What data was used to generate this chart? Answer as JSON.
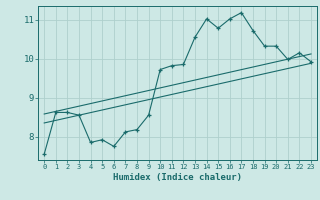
{
  "xlabel": "Humidex (Indice chaleur)",
  "bg_color": "#cde8e5",
  "grid_color": "#aed0cc",
  "line_color": "#1a6b6b",
  "xlim": [
    -0.5,
    23.5
  ],
  "ylim": [
    7.4,
    11.35
  ],
  "xticks": [
    0,
    1,
    2,
    3,
    4,
    5,
    6,
    7,
    8,
    9,
    10,
    11,
    12,
    13,
    14,
    15,
    16,
    17,
    18,
    19,
    20,
    21,
    22,
    23
  ],
  "yticks": [
    8,
    9,
    10,
    11
  ],
  "data_x": [
    0,
    1,
    2,
    3,
    4,
    5,
    6,
    7,
    8,
    9,
    10,
    11,
    12,
    13,
    14,
    15,
    16,
    17,
    18,
    19,
    20,
    21,
    22,
    23
  ],
  "data_y": [
    7.55,
    8.62,
    8.62,
    8.55,
    7.85,
    7.92,
    7.75,
    8.12,
    8.18,
    8.55,
    9.72,
    9.82,
    9.85,
    10.55,
    11.02,
    10.78,
    11.02,
    11.18,
    10.72,
    10.32,
    10.32,
    9.98,
    10.15,
    9.92
  ],
  "trend1_x": [
    0,
    23
  ],
  "trend1_y": [
    8.35,
    9.88
  ],
  "trend2_x": [
    0,
    23
  ],
  "trend2_y": [
    8.58,
    10.12
  ]
}
